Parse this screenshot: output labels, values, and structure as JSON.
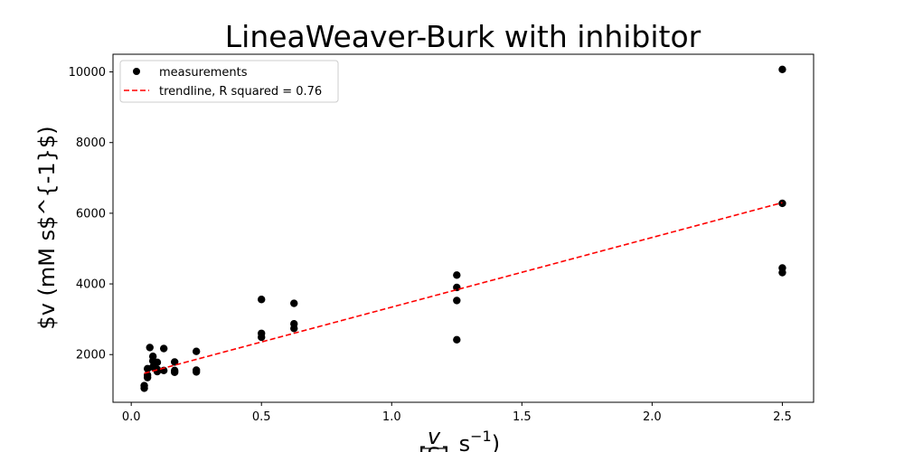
{
  "chart_data": {
    "type": "scatter",
    "title": "LineaWeaver-Burk with inhibitor",
    "ylabel": "$v (mM s$^{-1}$)",
    "xlabel_fraction_numerator": "v",
    "xlabel_fraction_denominator": "[S]",
    "xlabel_rest": " s",
    "xlabel_exponent": "−1",
    "xlabel_close": ")",
    "xlim": [
      -0.07,
      2.62
    ],
    "ylim": [
      650,
      10500
    ],
    "xticks": [
      0.0,
      0.5,
      1.0,
      1.5,
      2.0,
      2.5
    ],
    "xtick_labels": [
      "0.0",
      "0.5",
      "1.0",
      "1.5",
      "2.0",
      "2.5"
    ],
    "yticks": [
      2000,
      4000,
      6000,
      8000,
      10000
    ],
    "ytick_labels": [
      "2000",
      "4000",
      "6000",
      "8000",
      "10000"
    ],
    "grid": false,
    "legend_position": "top-left",
    "series": [
      {
        "name": "measurements",
        "color": "#000000",
        "marker": "circle",
        "points": [
          [
            0.05,
            1050
          ],
          [
            0.05,
            1120
          ],
          [
            0.0625,
            1350
          ],
          [
            0.0625,
            1420
          ],
          [
            0.0625,
            1600
          ],
          [
            0.0714,
            2200
          ],
          [
            0.0833,
            1650
          ],
          [
            0.0833,
            1820
          ],
          [
            0.0833,
            1950
          ],
          [
            0.1,
            1520
          ],
          [
            0.1,
            1580
          ],
          [
            0.1,
            1780
          ],
          [
            0.125,
            1550
          ],
          [
            0.125,
            2170
          ],
          [
            0.1667,
            1500
          ],
          [
            0.1667,
            1550
          ],
          [
            0.1667,
            1790
          ],
          [
            0.25,
            1510
          ],
          [
            0.25,
            1560
          ],
          [
            0.25,
            2090
          ],
          [
            0.5,
            2490
          ],
          [
            0.5,
            2600
          ],
          [
            0.5,
            3560
          ],
          [
            0.625,
            2740
          ],
          [
            0.625,
            2870
          ],
          [
            0.625,
            3450
          ],
          [
            1.25,
            2420
          ],
          [
            1.25,
            3530
          ],
          [
            1.25,
            3900
          ],
          [
            1.25,
            4250
          ],
          [
            2.5,
            4320
          ],
          [
            2.5,
            4450
          ],
          [
            2.5,
            6280
          ],
          [
            2.5,
            10070
          ]
        ]
      },
      {
        "name": "trendline, R squared = 0.76",
        "color": "#ff0000",
        "style": "dashed",
        "points": [
          [
            0.05,
            1470
          ],
          [
            2.5,
            6300
          ]
        ]
      }
    ]
  }
}
